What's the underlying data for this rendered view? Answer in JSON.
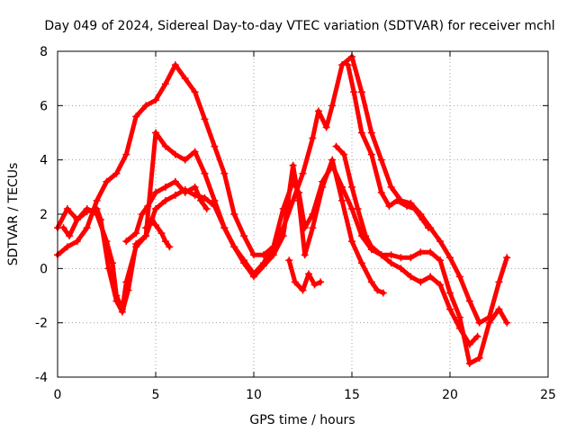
{
  "chart_data": {
    "type": "scatter",
    "title": "Day 049 of 2024, Sidereal Day-to-day VTEC variation (SDTVAR) for receiver mchl",
    "xlabel": "GPS time / hours",
    "ylabel": "SDTVAR / TECUs",
    "xlim": [
      0,
      25
    ],
    "ylim": [
      -4,
      8
    ],
    "xticks": [
      "0",
      "5",
      "10",
      "15",
      "20",
      "25"
    ],
    "yticks": [
      "-4",
      "-2",
      "0",
      "2",
      "4",
      "6",
      "8"
    ],
    "grid": true,
    "legend": "none",
    "marker": "+",
    "color": "#ff0000",
    "series": [
      {
        "x": [
          0,
          0.5,
          1,
          1.5,
          2,
          2.2,
          2.6,
          3,
          3.3,
          3.6,
          4,
          4.5,
          5,
          5.5,
          6,
          6.5,
          7,
          7.5,
          8,
          8.5,
          9,
          9.5,
          10,
          10.5,
          11,
          11.5,
          12,
          12.3,
          12.6,
          13,
          13.5,
          14,
          14.5,
          15,
          15.5,
          16,
          16.5,
          17,
          17.5,
          18,
          18.5,
          19,
          19.5,
          20,
          20.5,
          21,
          21.5,
          22,
          22.5,
          22.9
        ],
        "y": [
          1.5,
          2.2,
          1.8,
          2.1,
          2.2,
          1.8,
          0.0,
          -1.2,
          -1.6,
          -0.8,
          0.9,
          1.2,
          2.2,
          2.5,
          2.7,
          2.9,
          2.7,
          2.6,
          2.3,
          1.5,
          0.8,
          0.3,
          -0.2,
          0.2,
          0.8,
          2.2,
          3.2,
          2.8,
          1.5,
          2.0,
          3.2,
          3.8,
          3.0,
          2.2,
          1.2,
          0.7,
          0.5,
          0.5,
          0.4,
          0.4,
          0.6,
          0.6,
          0.3,
          -0.9,
          -1.8,
          -3.5,
          -3.3,
          -2.0,
          -1.5,
          -2.0
        ]
      },
      {
        "x": [
          0,
          0.5,
          1,
          1.5,
          2,
          2.5,
          3,
          3.5,
          4,
          4.5,
          5,
          5.5,
          6,
          6.5,
          7,
          7.5,
          8,
          8.5,
          9,
          9.5,
          10,
          10.5,
          11,
          11.5,
          12,
          12.5,
          13,
          13.3,
          13.7,
          14,
          14.5,
          15,
          15.5,
          16,
          16.5,
          17,
          17.5,
          18,
          18.5,
          19,
          19.5,
          20,
          20.5,
          21,
          21.5,
          22,
          22.5,
          22.9
        ],
        "y": [
          0.5,
          0.8,
          1.0,
          1.5,
          2.5,
          3.2,
          3.5,
          4.2,
          5.6,
          6.0,
          6.2,
          6.8,
          7.5,
          7.0,
          6.5,
          5.5,
          4.5,
          3.5,
          2.0,
          1.2,
          0.5,
          0.5,
          0.8,
          1.5,
          2.5,
          3.5,
          4.8,
          5.8,
          5.2,
          6.0,
          7.5,
          7.8,
          6.5,
          5.0,
          4.0,
          3.0,
          2.5,
          2.4,
          2.0,
          1.5,
          1.0,
          0.4,
          -0.3,
          -1.2,
          -2.0,
          -1.8,
          -0.5,
          0.4
        ]
      },
      {
        "x": [
          0.3,
          0.6,
          1,
          1.5,
          2,
          2.5,
          2.8,
          3,
          3.3,
          3.5,
          4,
          4.5,
          5,
          5.5,
          6,
          6.5,
          7,
          7.5,
          8,
          8.5,
          9,
          9.5,
          10,
          10.5,
          11,
          11.5,
          12,
          12.3,
          12.6,
          13,
          13.5,
          14,
          14.5,
          15,
          15.5,
          16,
          16.3,
          16.6
        ],
        "y": [
          1.5,
          1.2,
          1.8,
          2.2,
          2.0,
          1.0,
          0.2,
          -1.0,
          -1.5,
          -0.5,
          0.8,
          1.2,
          5.0,
          4.5,
          4.2,
          4.0,
          4.3,
          3.5,
          2.5,
          1.5,
          0.8,
          0.2,
          -0.3,
          0.1,
          0.5,
          1.2,
          3.8,
          2.5,
          0.5,
          1.5,
          3.0,
          4.0,
          2.5,
          1.0,
          0.2,
          -0.5,
          -0.8,
          -0.9
        ]
      },
      {
        "x": [
          3.5,
          4,
          4.3,
          4.6,
          5,
          5.5,
          6,
          6.5,
          7,
          7.3,
          7.6
        ],
        "y": [
          1.0,
          1.3,
          2.0,
          2.3,
          2.8,
          3.0,
          3.2,
          2.8,
          3.0,
          2.5,
          2.2
        ]
      },
      {
        "x": [
          4.5,
          4.8,
          5,
          5.3,
          5.5,
          5.7
        ],
        "y": [
          1.5,
          1.8,
          1.6,
          1.3,
          1.0,
          0.8
        ]
      },
      {
        "x": [
          11.8,
          12.1,
          12.5,
          12.8,
          13.1,
          13.4
        ],
        "y": [
          0.3,
          -0.5,
          -0.8,
          -0.2,
          -0.6,
          -0.5
        ]
      },
      {
        "x": [
          14.2,
          14.6,
          15,
          15.3,
          15.7,
          16,
          16.5,
          17,
          17.5,
          18,
          18.5,
          19,
          19.5,
          20,
          20.5,
          21,
          21.4
        ],
        "y": [
          4.5,
          4.2,
          3.0,
          2.2,
          1.2,
          0.8,
          0.5,
          0.2,
          0.0,
          -0.3,
          -0.5,
          -0.3,
          -0.6,
          -1.5,
          -2.2,
          -2.8,
          -2.5
        ]
      },
      {
        "x": [
          14.8,
          15.1,
          15.5,
          16,
          16.5,
          16.9,
          17.3,
          17.8,
          18.2,
          18.6,
          18.9
        ],
        "y": [
          7.5,
          6.5,
          5.0,
          4.2,
          2.8,
          2.3,
          2.5,
          2.3,
          2.2,
          1.8,
          1.5
        ]
      }
    ]
  }
}
